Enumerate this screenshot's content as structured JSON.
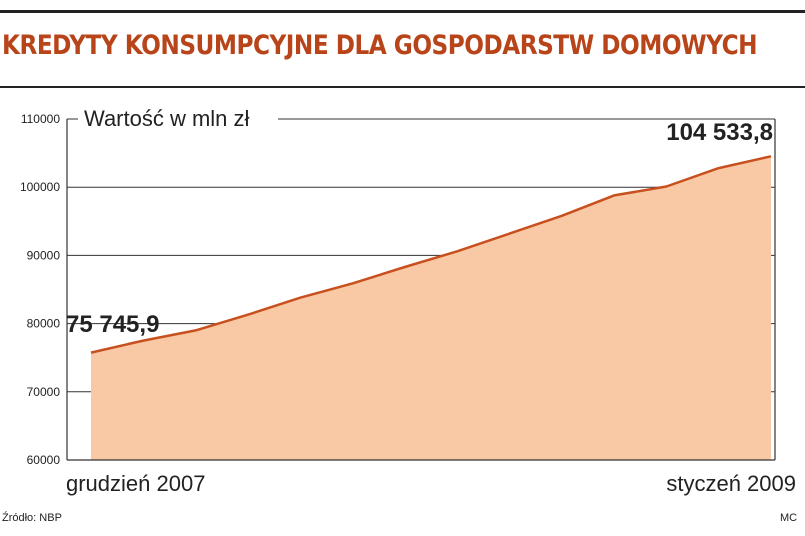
{
  "title": "KREDYTY KONSUMPCYJNE DLA GOSPODARSTW DOMOWYCH",
  "source": "Źródło: NBP",
  "credit": "MC",
  "colors": {
    "accent": "#b8441a",
    "area_fill": "#f8c9a4",
    "line": "#c8501f",
    "grid": "#333333"
  },
  "chart_data": {
    "type": "area",
    "ylabel": "Wartość w mln zł",
    "ylim": [
      60000,
      110000
    ],
    "yticks": [
      60000,
      70000,
      80000,
      90000,
      100000,
      110000
    ],
    "x_start_label": "grudzień 2007",
    "x_end_label": "styczeń 2009",
    "start_value_label": "75 745,9",
    "end_value_label": "104 533,8",
    "series": [
      {
        "values": [
          75745.9,
          77500,
          79000,
          81300,
          83800,
          85900,
          88300,
          90600,
          93200,
          95800,
          98800,
          100100,
          102800,
          104533.8
        ]
      }
    ],
    "grid": true
  }
}
